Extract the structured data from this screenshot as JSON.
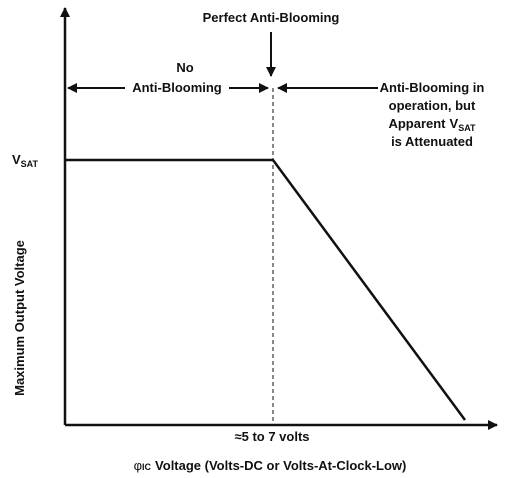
{
  "title": "Perfect Anti-Blooming",
  "left_region": {
    "line1": "No",
    "line2": "Anti-Blooming"
  },
  "right_region": {
    "line1": "Anti-Blooming in",
    "line2": "operation, but",
    "line3": {
      "text": "Apparent",
      "main": "V",
      "sub": "SAT"
    },
    "line4": "is Attenuated"
  },
  "y_level": {
    "main": "V",
    "sub": "SAT"
  },
  "y_axis_label": "Maximum Output Voltage",
  "x_marker_label": "≈5 to 7 volts",
  "x_axis_label": {
    "symbol": "φ",
    "sub": "IC",
    "text": "Voltage (Volts-DC or Volts-At-Clock-Low)"
  }
}
